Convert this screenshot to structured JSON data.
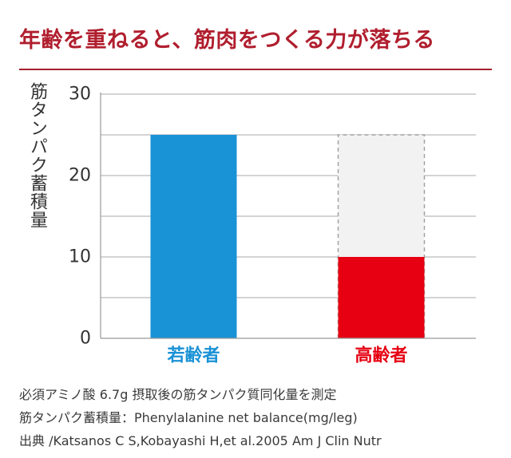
{
  "title": "年齢を重ねると、筋肉をつくる力が落ちる",
  "colors": {
    "title": "#b01e2e",
    "young": "#1a92d6",
    "old": "#e60012",
    "old_reference": "#f2f2f2",
    "grid": "#a8a8a8",
    "axis": "#999999"
  },
  "chart_data": {
    "type": "bar",
    "title": "年齢を重ねると、筋肉をつくる力が落ちる",
    "ylabel": "筋タンパク蓄積量",
    "xlabel": "",
    "ylim": [
      0,
      30
    ],
    "yticks": [
      0,
      10,
      20,
      30
    ],
    "minor_gridlines": [
      5,
      15,
      25
    ],
    "grid": true,
    "categories": [
      "若齢者",
      "高齢者"
    ],
    "values": [
      25,
      10
    ],
    "reference": {
      "category": "高齢者",
      "value": 25,
      "style": "dashed outline, light gray fill"
    }
  },
  "notes": [
    "必須アミノ酸 6.7g 摂取後の筋タンパク質同化量を測定",
    "筋タンパク蓄積量：Phenylalanine net balance(mg/leg)",
    "出典 /Katsanos C S,Kobayashi H,et al.2005 Am J Clin Nutr"
  ]
}
